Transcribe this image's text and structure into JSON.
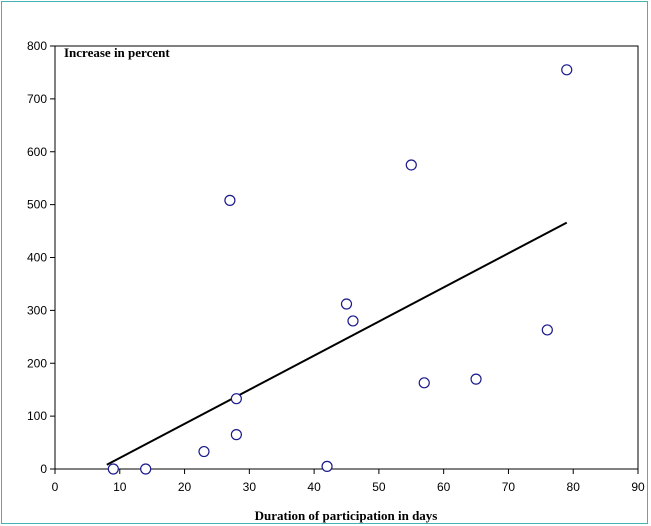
{
  "chart_data": {
    "type": "scatter",
    "annotation": "Increase in percent",
    "xlabel": "Duration of participation in days",
    "ylabel": "",
    "xlim": [
      0,
      90
    ],
    "ylim": [
      0,
      800
    ],
    "x_ticks": [
      0,
      10,
      20,
      30,
      40,
      50,
      60,
      70,
      80,
      90
    ],
    "y_ticks": [
      0,
      100,
      200,
      300,
      400,
      500,
      600,
      700,
      800
    ],
    "grid": false,
    "legend": "none",
    "points": [
      {
        "x": 9,
        "y": 0
      },
      {
        "x": 14,
        "y": 0
      },
      {
        "x": 23,
        "y": 33
      },
      {
        "x": 27,
        "y": 508
      },
      {
        "x": 28,
        "y": 65
      },
      {
        "x": 28,
        "y": 133
      },
      {
        "x": 42,
        "y": 5
      },
      {
        "x": 45,
        "y": 312
      },
      {
        "x": 46,
        "y": 280
      },
      {
        "x": 55,
        "y": 575
      },
      {
        "x": 57,
        "y": 163
      },
      {
        "x": 65,
        "y": 170
      },
      {
        "x": 76,
        "y": 263
      },
      {
        "x": 79,
        "y": 755
      }
    ],
    "trendline": [
      {
        "x": 8,
        "y": 8
      },
      {
        "x": 79,
        "y": 466
      }
    ],
    "colors": {
      "marker": "#1a1a8c",
      "trendline": "#000000",
      "frame_border": "#46b3b3"
    }
  }
}
